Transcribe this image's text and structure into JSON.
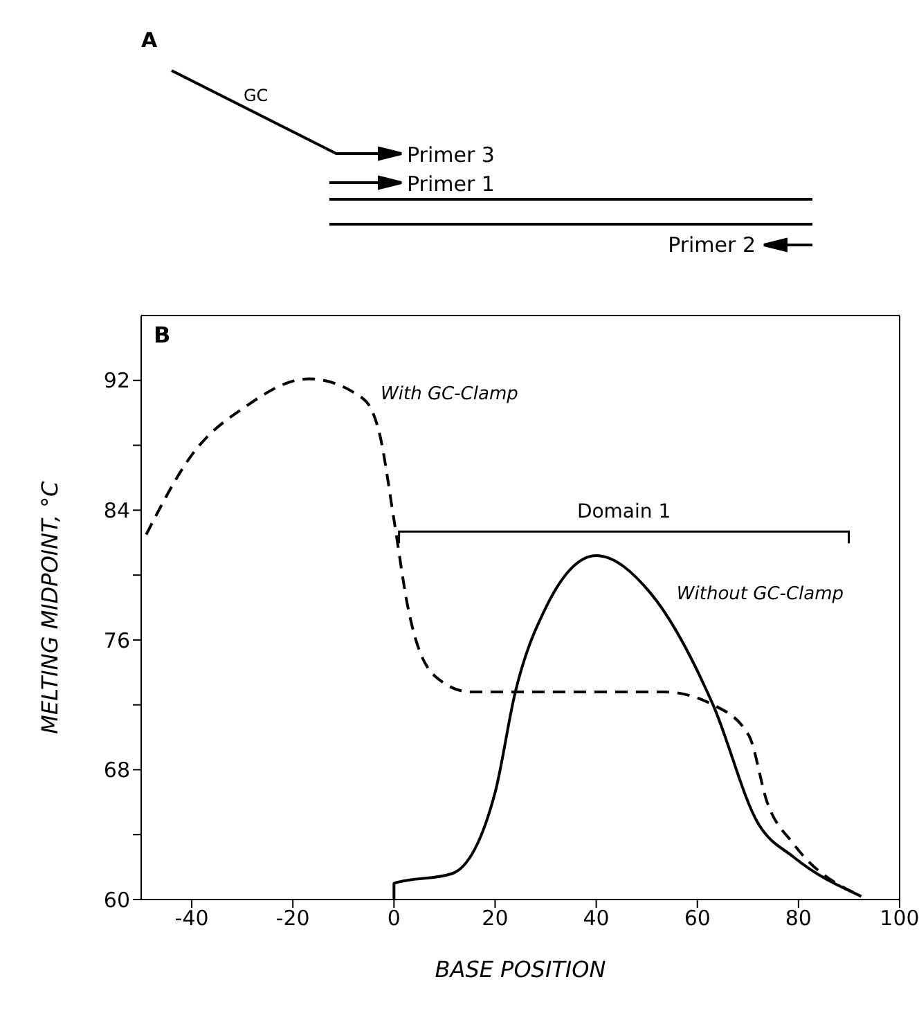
{
  "chart_data": {
    "type": "line",
    "xlabel": "BASE POSITION",
    "ylabel": "MELTING MIDPOINT,  °C",
    "xlim": [
      -50,
      100
    ],
    "xticks": [
      -40,
      -20,
      0,
      20,
      40,
      60,
      80,
      100
    ],
    "ylim": [
      60,
      96
    ],
    "yticks": [
      60,
      {
        "value": 64,
        "label": null
      },
      68,
      {
        "value": 72,
        "label": null
      },
      76,
      {
        "value": 80,
        "label": null
      },
      84,
      {
        "value": 88,
        "label": null
      },
      92
    ],
    "grid": false,
    "legend": false,
    "marker": "none",
    "series": [
      {
        "name": "With GC-Clamp",
        "color": "#000000",
        "line_style": "dashed",
        "x": [
          -49,
          -40,
          -29.3,
          -16.9,
          -6.2,
          -2.7,
          0,
          2.7,
          8,
          15.1,
          24,
          53.3,
          63.1,
          70.2,
          73.8,
          79.1,
          92.4
        ],
        "values": [
          82.5,
          87.4,
          90.4,
          92.1,
          90.9,
          88.5,
          83.4,
          78.1,
          73.8,
          72.8,
          72.8,
          72.8,
          72.0,
          70.1,
          66.0,
          63.4,
          60.2
        ]
      },
      {
        "name": "Without GC-Clamp",
        "color": "#000000",
        "line_style": "solid",
        "x": [
          0,
          0,
          11.5,
          20,
          24,
          30.2,
          40,
          50.7,
          63.1,
          72,
          79.1,
          92.4
        ],
        "values": [
          60,
          61.0,
          61.6,
          66.6,
          72.8,
          78.1,
          81.2,
          78.9,
          72.0,
          64.7,
          62.6,
          60.2
        ]
      }
    ],
    "annotations": [
      "A",
      "GC",
      "Primer 3",
      "Primer 1",
      "Primer 2",
      "B",
      "Domain 1"
    ]
  }
}
